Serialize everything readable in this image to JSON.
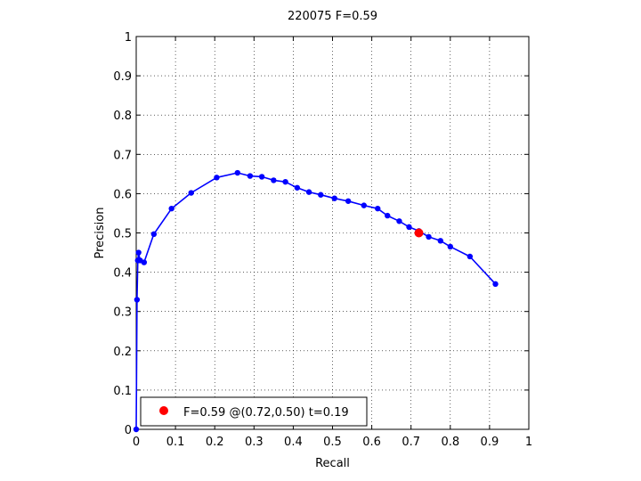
{
  "chart_data": {
    "type": "line",
    "title": "220075 F=0.59",
    "xlabel": "Recall",
    "ylabel": "Precision",
    "xlim": [
      0,
      1
    ],
    "ylim": [
      0,
      1
    ],
    "xticks": [
      "0",
      "0.1",
      "0.2",
      "0.3",
      "0.4",
      "0.5",
      "0.6",
      "0.7",
      "0.8",
      "0.9",
      "1"
    ],
    "yticks": [
      "0",
      "0.1",
      "0.2",
      "0.3",
      "0.4",
      "0.5",
      "0.6",
      "0.7",
      "0.8",
      "0.9",
      "1"
    ],
    "grid": true,
    "legend_position": "bottom-left",
    "series": [
      {
        "color": "#0000ff",
        "x": [
          0,
          0.002,
          0.004,
          0.006,
          0.01,
          0.02,
          0.045,
          0.09,
          0.14,
          0.205,
          0.258,
          0.29,
          0.32,
          0.35,
          0.38,
          0.41,
          0.44,
          0.47,
          0.505,
          0.54,
          0.58,
          0.615,
          0.64,
          0.67,
          0.695,
          0.72,
          0.745,
          0.775,
          0.8,
          0.85,
          0.915
        ],
        "y": [
          0,
          0.33,
          0.43,
          0.45,
          0.43,
          0.425,
          0.497,
          0.562,
          0.602,
          0.641,
          0.653,
          0.645,
          0.643,
          0.634,
          0.63,
          0.615,
          0.604,
          0.597,
          0.588,
          0.581,
          0.57,
          0.562,
          0.544,
          0.53,
          0.515,
          0.505,
          0.49,
          0.48,
          0.465,
          0.44,
          0.37
        ]
      }
    ],
    "highlight": {
      "x": 0.72,
      "y": 0.5,
      "color": "#ff0000"
    },
    "legend_label": "F=0.59 @(0.72,0.50) t=0.19"
  }
}
